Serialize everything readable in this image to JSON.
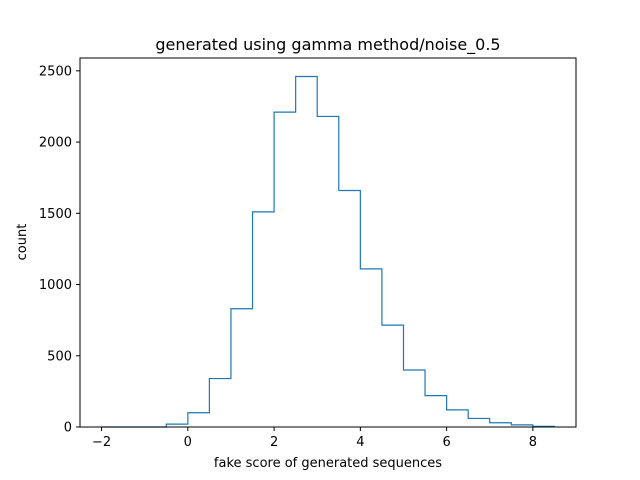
{
  "chart_data": {
    "type": "histogram",
    "title": "generated using gamma method/noise_0.5",
    "xlabel": "fake score of generated sequences",
    "ylabel": "count",
    "xlim": [
      -2.5,
      9.0
    ],
    "ylim": [
      0,
      2590
    ],
    "xticks": [
      -2,
      0,
      2,
      4,
      6,
      8
    ],
    "yticks": [
      0,
      500,
      1000,
      1500,
      2000,
      2500
    ],
    "grid": false,
    "legend": "none",
    "style": "step",
    "color": "#1f77b4",
    "bins": [
      {
        "x0": -2.0,
        "x1": -1.5,
        "count": 0
      },
      {
        "x0": -1.5,
        "x1": -1.0,
        "count": 0
      },
      {
        "x0": -1.0,
        "x1": -0.5,
        "count": 0
      },
      {
        "x0": -0.5,
        "x1": 0.0,
        "count": 20
      },
      {
        "x0": 0.0,
        "x1": 0.5,
        "count": 100
      },
      {
        "x0": 0.5,
        "x1": 1.0,
        "count": 340
      },
      {
        "x0": 1.0,
        "x1": 1.5,
        "count": 830
      },
      {
        "x0": 1.5,
        "x1": 2.0,
        "count": 1510
      },
      {
        "x0": 2.0,
        "x1": 2.5,
        "count": 2210
      },
      {
        "x0": 2.5,
        "x1": 3.0,
        "count": 2460
      },
      {
        "x0": 3.0,
        "x1": 3.5,
        "count": 2180
      },
      {
        "x0": 3.5,
        "x1": 4.0,
        "count": 1660
      },
      {
        "x0": 4.0,
        "x1": 4.5,
        "count": 1110
      },
      {
        "x0": 4.5,
        "x1": 5.0,
        "count": 715
      },
      {
        "x0": 5.0,
        "x1": 5.5,
        "count": 400
      },
      {
        "x0": 5.5,
        "x1": 6.0,
        "count": 220
      },
      {
        "x0": 6.0,
        "x1": 6.5,
        "count": 120
      },
      {
        "x0": 6.5,
        "x1": 7.0,
        "count": 60
      },
      {
        "x0": 7.0,
        "x1": 7.5,
        "count": 30
      },
      {
        "x0": 7.5,
        "x1": 8.0,
        "count": 15
      },
      {
        "x0": 8.0,
        "x1": 8.5,
        "count": 5
      }
    ]
  }
}
